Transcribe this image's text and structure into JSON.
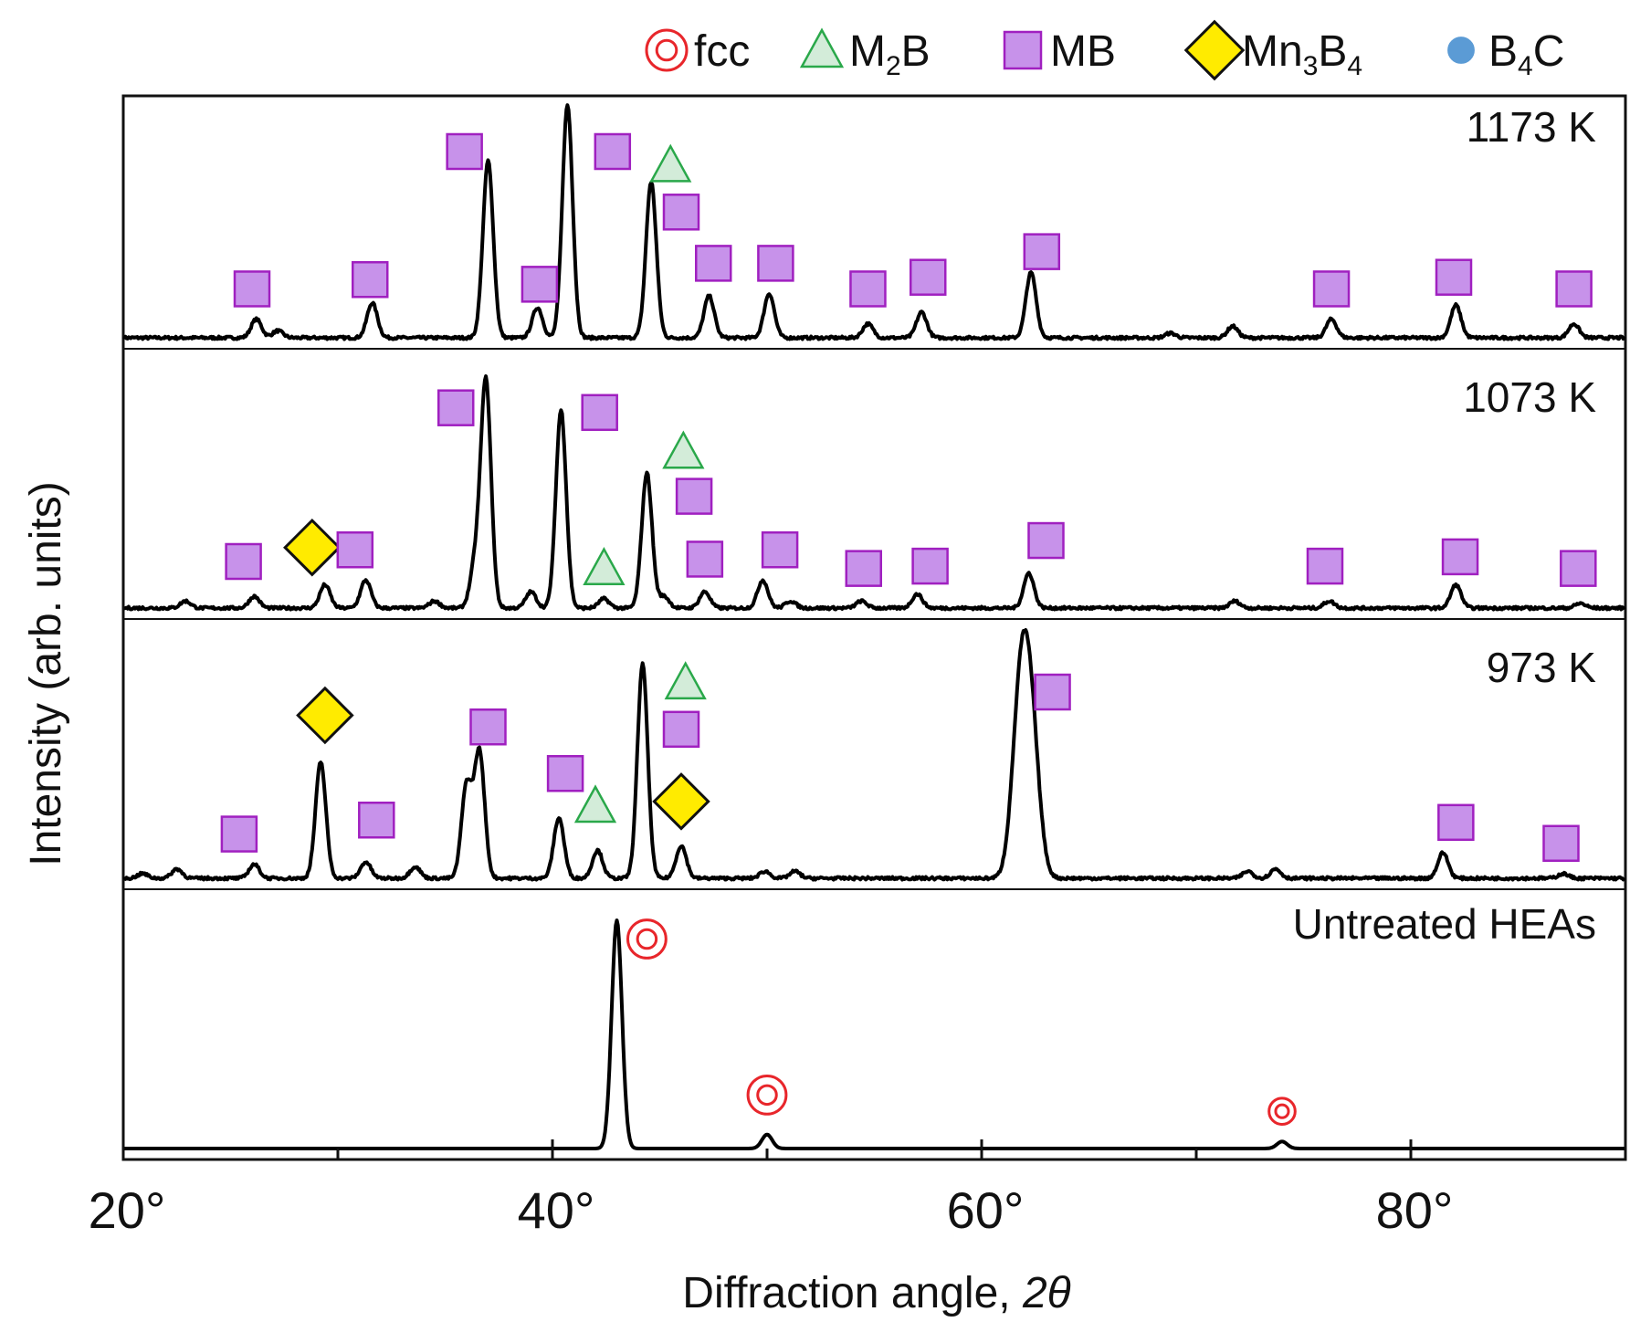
{
  "chart_data": {
    "type": "line",
    "title": "",
    "xlabel": "Diffraction angle, 2θ",
    "xlabel_text": "Diffraction angle, ",
    "xlabel_symbol": "2θ",
    "ylabel": "Intensity (arb. units)",
    "xlim": [
      20,
      90
    ],
    "x_ticks": [
      {
        "value": 20,
        "label": "20°"
      },
      {
        "value": 40,
        "label": "40°"
      },
      {
        "value": 60,
        "label": "60°"
      },
      {
        "value": 80,
        "label": "80°"
      }
    ],
    "x_minor_ticks": [
      30,
      50,
      70,
      90
    ],
    "legend": [
      {
        "key": "fcc",
        "label": "fcc",
        "marker": "double-circle",
        "color": "#e8262b",
        "sub": ""
      },
      {
        "key": "m2b",
        "label": "M",
        "sub": "2",
        "label_after": "B",
        "marker": "triangle",
        "color": "#2aa84a",
        "fill": "#d3ecd9"
      },
      {
        "key": "mb",
        "label": "MB",
        "sub": "",
        "marker": "square",
        "color": "#a020c0",
        "fill": "#c792ea"
      },
      {
        "key": "mn3b4",
        "label": "Mn",
        "sub": "3",
        "label_after": "B",
        "sub2": "4",
        "marker": "diamond",
        "color": "#111111",
        "fill": "#ffeb00"
      },
      {
        "key": "b4c",
        "label": "B",
        "sub": "4",
        "label_after": "C",
        "marker": "circle",
        "color": "#5b9bd5",
        "fill": "#5b9bd5"
      }
    ],
    "series": [
      {
        "name": "1173 K",
        "offset": 3,
        "peaks": [
          [
            26.2,
            0.08
          ],
          [
            27.2,
            0.03
          ],
          [
            31.6,
            0.15
          ],
          [
            37.0,
            0.76
          ],
          [
            39.3,
            0.13
          ],
          [
            40.7,
            1.0
          ],
          [
            44.6,
            0.67
          ],
          [
            47.3,
            0.18
          ],
          [
            50.1,
            0.19
          ],
          [
            54.7,
            0.06
          ],
          [
            57.2,
            0.11
          ],
          [
            62.3,
            0.28
          ],
          [
            68.8,
            0.02
          ],
          [
            71.7,
            0.05
          ],
          [
            76.3,
            0.08
          ],
          [
            82.1,
            0.14
          ],
          [
            87.6,
            0.06
          ]
        ],
        "markers": [
          {
            "type": "mb",
            "x": 26.0,
            "y": 0.21
          },
          {
            "type": "mb",
            "x": 31.5,
            "y": 0.25
          },
          {
            "type": "mb",
            "x": 35.9,
            "y": 0.8
          },
          {
            "type": "mb",
            "x": 39.4,
            "y": 0.23
          },
          {
            "type": "mb",
            "x": 42.8,
            "y": 0.8
          },
          {
            "type": "m2b",
            "x": 45.5,
            "y": 0.74
          },
          {
            "type": "mb",
            "x": 46.0,
            "y": 0.54
          },
          {
            "type": "mb",
            "x": 47.5,
            "y": 0.32
          },
          {
            "type": "mb",
            "x": 50.4,
            "y": 0.32
          },
          {
            "type": "mb",
            "x": 54.7,
            "y": 0.21
          },
          {
            "type": "mb",
            "x": 57.5,
            "y": 0.26
          },
          {
            "type": "mb",
            "x": 62.8,
            "y": 0.37
          },
          {
            "type": "mb",
            "x": 76.3,
            "y": 0.21
          },
          {
            "type": "mb",
            "x": 82.0,
            "y": 0.26
          },
          {
            "type": "mb",
            "x": 87.6,
            "y": 0.21
          }
        ]
      },
      {
        "name": "1073 K",
        "offset": 2,
        "peaks": [
          [
            22.9,
            0.03
          ],
          [
            26.1,
            0.05
          ],
          [
            29.4,
            0.1
          ],
          [
            31.3,
            0.12
          ],
          [
            34.5,
            0.03
          ],
          [
            36.4,
            0.18
          ],
          [
            36.9,
            0.97
          ],
          [
            39.0,
            0.07
          ],
          [
            40.4,
            0.85
          ],
          [
            42.4,
            0.04
          ],
          [
            44.4,
            0.58
          ],
          [
            45.2,
            0.05
          ],
          [
            47.1,
            0.07
          ],
          [
            49.8,
            0.12
          ],
          [
            51.1,
            0.03
          ],
          [
            54.4,
            0.03
          ],
          [
            57.0,
            0.06
          ],
          [
            62.2,
            0.15
          ],
          [
            71.8,
            0.03
          ],
          [
            76.2,
            0.03
          ],
          [
            82.1,
            0.1
          ],
          [
            87.9,
            0.02
          ]
        ],
        "markers": [
          {
            "type": "mb",
            "x": 25.6,
            "y": 0.2
          },
          {
            "type": "mn3b4",
            "x": 28.8,
            "y": 0.26
          },
          {
            "type": "mb",
            "x": 30.8,
            "y": 0.25
          },
          {
            "type": "mb",
            "x": 35.5,
            "y": 0.86
          },
          {
            "type": "mb",
            "x": 42.2,
            "y": 0.84
          },
          {
            "type": "m2b",
            "x": 42.4,
            "y": 0.17
          },
          {
            "type": "m2b",
            "x": 46.1,
            "y": 0.67
          },
          {
            "type": "mb",
            "x": 46.6,
            "y": 0.48
          },
          {
            "type": "mb",
            "x": 47.1,
            "y": 0.21
          },
          {
            "type": "mb",
            "x": 50.6,
            "y": 0.25
          },
          {
            "type": "mb",
            "x": 54.5,
            "y": 0.17
          },
          {
            "type": "mb",
            "x": 57.6,
            "y": 0.18
          },
          {
            "type": "mb",
            "x": 63.0,
            "y": 0.29
          },
          {
            "type": "mb",
            "x": 76.0,
            "y": 0.18
          },
          {
            "type": "mb",
            "x": 82.3,
            "y": 0.22
          },
          {
            "type": "mb",
            "x": 87.8,
            "y": 0.17
          }
        ]
      },
      {
        "name": "973 K",
        "offset": 1,
        "peaks": [
          [
            20.9,
            0.02
          ],
          [
            22.5,
            0.04
          ],
          [
            26.1,
            0.06
          ],
          [
            29.2,
            0.5
          ],
          [
            31.3,
            0.07
          ],
          [
            33.6,
            0.05
          ],
          [
            36.0,
            0.4
          ],
          [
            36.6,
            0.54
          ],
          [
            40.3,
            0.26
          ],
          [
            42.1,
            0.12
          ],
          [
            44.2,
            0.92
          ],
          [
            46.0,
            0.14
          ],
          [
            49.9,
            0.03
          ],
          [
            51.3,
            0.03
          ],
          [
            61.8,
            0.72
          ],
          [
            62.3,
            0.6
          ],
          [
            72.4,
            0.03
          ],
          [
            73.7,
            0.04
          ],
          [
            81.5,
            0.11
          ],
          [
            87.1,
            0.02
          ]
        ],
        "markers": [
          {
            "type": "mb",
            "x": 25.4,
            "y": 0.19
          },
          {
            "type": "mn3b4",
            "x": 29.4,
            "y": 0.7
          },
          {
            "type": "mb",
            "x": 31.8,
            "y": 0.25
          },
          {
            "type": "mb",
            "x": 37.0,
            "y": 0.65
          },
          {
            "type": "mb",
            "x": 40.6,
            "y": 0.45
          },
          {
            "type": "m2b",
            "x": 42.0,
            "y": 0.31
          },
          {
            "type": "m2b",
            "x": 46.2,
            "y": 0.84
          },
          {
            "type": "mb",
            "x": 46.0,
            "y": 0.64
          },
          {
            "type": "mn3b4",
            "x": 46.0,
            "y": 0.33
          },
          {
            "type": "mb",
            "x": 63.3,
            "y": 0.8
          },
          {
            "type": "mb",
            "x": 82.1,
            "y": 0.24
          },
          {
            "type": "mb",
            "x": 87.0,
            "y": 0.15
          }
        ]
      },
      {
        "name": "Untreated HEAs",
        "offset": 0,
        "peaks": [
          [
            43.0,
            0.98
          ],
          [
            50.0,
            0.06
          ],
          [
            74.0,
            0.03
          ]
        ],
        "markers": [
          {
            "type": "fcc",
            "x": 44.4,
            "y": 0.9
          },
          {
            "type": "fcc",
            "x": 50.0,
            "y": 0.23
          },
          {
            "type": "fcc",
            "x": 74.0,
            "y": 0.16
          }
        ]
      }
    ]
  }
}
